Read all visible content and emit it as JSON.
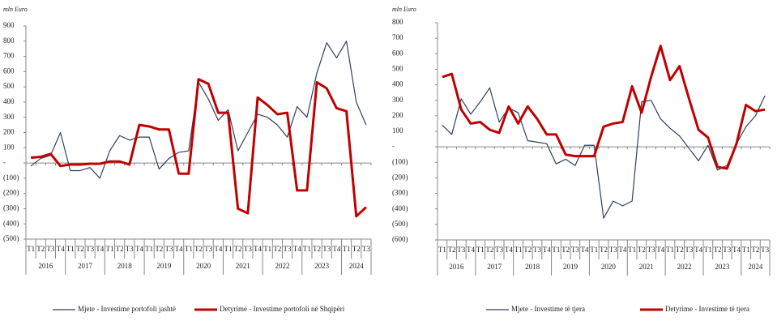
{
  "chart_data": [
    {
      "type": "line",
      "unit_label": "mln Euro",
      "categories": [
        "T1",
        "T2",
        "T3",
        "T4",
        "T1",
        "T2",
        "T3",
        "T4",
        "T1",
        "T2",
        "T3",
        "T4",
        "T1",
        "T2",
        "T3",
        "T4",
        "T1",
        "T2",
        "T3",
        "T4",
        "T1",
        "T2",
        "T3",
        "T4",
        "T1",
        "T2",
        "T3",
        "T4",
        "T1",
        "T2",
        "T3",
        "T4",
        "T1",
        "T2",
        "T3"
      ],
      "year_groups": [
        {
          "label": "2016",
          "quarters": 4
        },
        {
          "label": "2017",
          "quarters": 4
        },
        {
          "label": "2018",
          "quarters": 4
        },
        {
          "label": "2019",
          "quarters": 4
        },
        {
          "label": "2020",
          "quarters": 4
        },
        {
          "label": "2021",
          "quarters": 4
        },
        {
          "label": "2022",
          "quarters": 4
        },
        {
          "label": "2023",
          "quarters": 4
        },
        {
          "label": "2024",
          "quarters": 3
        }
      ],
      "ylim": [
        -500,
        900
      ],
      "yticks": [
        {
          "value": -500,
          "label": "(500)"
        },
        {
          "value": -400,
          "label": "(400)"
        },
        {
          "value": -300,
          "label": "(300)"
        },
        {
          "value": -200,
          "label": "(200)"
        },
        {
          "value": -100,
          "label": "(100)"
        },
        {
          "value": 0,
          "label": "-"
        },
        100,
        200,
        300,
        400,
        500,
        600,
        700,
        800,
        900
      ],
      "series": [
        {
          "name": "Mjete - Investime portofoli jashtë",
          "color": "#2e3f5e",
          "values": [
            -20,
            30,
            50,
            200,
            -50,
            -50,
            -30,
            -100,
            80,
            180,
            150,
            170,
            170,
            -40,
            30,
            70,
            80,
            530,
            420,
            280,
            350,
            80,
            200,
            320,
            300,
            250,
            170,
            370,
            300,
            590,
            790,
            690,
            800,
            400,
            250
          ]
        },
        {
          "name": "Detyrime - Investime portofoli në Shqipëri",
          "color": "#c00000",
          "values": [
            35,
            40,
            60,
            -20,
            -10,
            -10,
            -5,
            -5,
            10,
            10,
            -10,
            250,
            240,
            220,
            220,
            -70,
            -70,
            550,
            520,
            330,
            330,
            -300,
            -330,
            430,
            380,
            320,
            330,
            -180,
            -180,
            530,
            490,
            360,
            340,
            -350,
            -290
          ]
        }
      ]
    },
    {
      "type": "line",
      "unit_label": "mln Euro",
      "categories": [
        "T1",
        "T2",
        "T3",
        "T4",
        "T1",
        "T2",
        "T3",
        "T4",
        "T1",
        "T2",
        "T3",
        "T4",
        "T1",
        "T2",
        "T3",
        "T4",
        "T1",
        "T2",
        "T3",
        "T4",
        "T1",
        "T2",
        "T3",
        "T4",
        "T1",
        "T2",
        "T3",
        "T4",
        "T1",
        "T2",
        "T3",
        "T4",
        "T1",
        "T2",
        "T3"
      ],
      "year_groups": [
        {
          "label": "2016",
          "quarters": 4
        },
        {
          "label": "2017",
          "quarters": 4
        },
        {
          "label": "2018",
          "quarters": 4
        },
        {
          "label": "2019",
          "quarters": 4
        },
        {
          "label": "2020",
          "quarters": 4
        },
        {
          "label": "2021",
          "quarters": 4
        },
        {
          "label": "2022",
          "quarters": 4
        },
        {
          "label": "2023",
          "quarters": 4
        },
        {
          "label": "2024",
          "quarters": 3
        }
      ],
      "ylim": [
        -600,
        800
      ],
      "yticks": [
        {
          "value": -600,
          "label": "(600)"
        },
        {
          "value": -500,
          "label": "(500)"
        },
        {
          "value": -400,
          "label": "(400)"
        },
        {
          "value": -300,
          "label": "(300)"
        },
        {
          "value": -200,
          "label": "(200)"
        },
        {
          "value": -100,
          "label": "(100)"
        },
        {
          "value": 0,
          "label": "-"
        },
        100,
        200,
        300,
        400,
        500,
        600,
        700,
        800
      ],
      "series": [
        {
          "name": "Mjete - Investime të tjera",
          "color": "#2e3f5e",
          "values": [
            140,
            80,
            310,
            210,
            290,
            380,
            160,
            250,
            220,
            40,
            30,
            20,
            -110,
            -80,
            -120,
            10,
            10,
            -460,
            -350,
            -380,
            -350,
            290,
            300,
            180,
            120,
            70,
            -10,
            -90,
            10,
            -150,
            -120,
            20,
            130,
            200,
            330
          ]
        },
        {
          "name": "Detyrime - Investime të tjera",
          "color": "#c00000",
          "values": [
            450,
            470,
            240,
            150,
            160,
            110,
            90,
            260,
            150,
            260,
            180,
            80,
            80,
            -50,
            -60,
            -60,
            -60,
            130,
            150,
            160,
            390,
            220,
            450,
            650,
            430,
            520,
            310,
            110,
            60,
            -130,
            -140,
            20,
            270,
            230,
            240
          ]
        }
      ]
    }
  ]
}
